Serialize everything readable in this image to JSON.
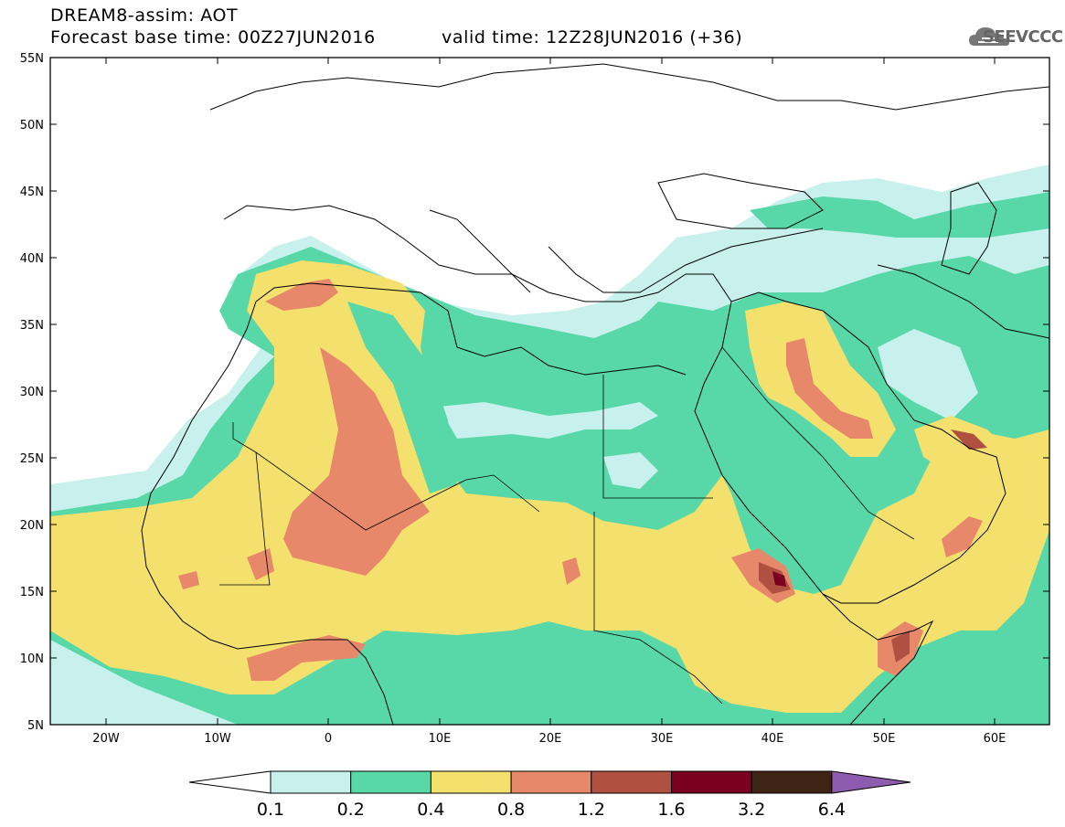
{
  "header": {
    "title": "DREAM8-assim: AOT",
    "base_time": "Forecast base time: 00Z27JUN2016",
    "valid_time": "valid time: 12Z28JUN2016 (+36)",
    "logo_text": "SEEVCCC"
  },
  "map": {
    "lon_range": [
      -25,
      65
    ],
    "lat_range": [
      5,
      55
    ],
    "lat_ticks": [
      "55N",
      "50N",
      "45N",
      "40N",
      "35N",
      "30N",
      "25N",
      "20N",
      "15N",
      "10N",
      "5N"
    ],
    "lon_ticks": [
      "20W",
      "10W",
      "0",
      "10E",
      "20E",
      "30E",
      "40E",
      "50E",
      "60E"
    ],
    "field": "Aerosol optical thickness (AOT)"
  },
  "colorbar": {
    "colors": [
      "#ffffff",
      "#c8f0ec",
      "#58d8a8",
      "#f4e06c",
      "#e8886a",
      "#b05040",
      "#7a0020",
      "#3e2414",
      "#8e5cae"
    ],
    "labels": [
      "0.1",
      "0.2",
      "0.4",
      "0.8",
      "1.2",
      "1.6",
      "3.2",
      "6.4"
    ]
  }
}
